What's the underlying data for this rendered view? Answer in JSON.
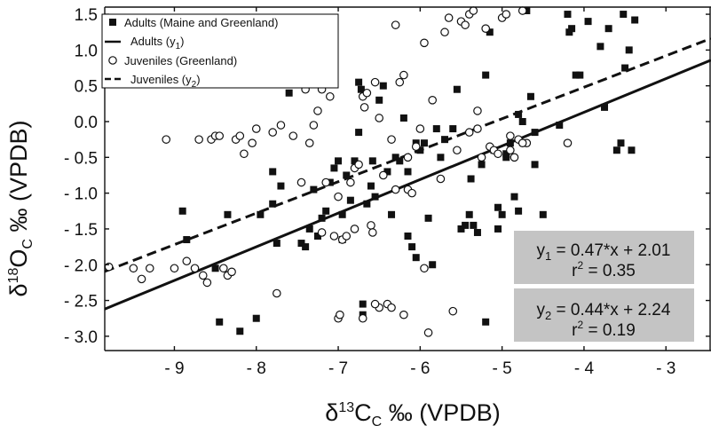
{
  "chart_data": {
    "type": "scatter",
    "xlabel": "δ13Cc ‰ (VPDB)",
    "ylabel": "δ18Oc ‰ (VPDB)",
    "xlim": [
      -9.85,
      -2.45
    ],
    "ylim": [
      -3.2,
      1.6
    ],
    "x_ticks": [
      -9,
      -8,
      -7,
      -6,
      -5,
      -4,
      -3
    ],
    "y_ticks": [
      1.5,
      1.0,
      0.5,
      0.0,
      -0.5,
      -1.0,
      -1.5,
      -2.0,
      -2.5,
      -3.0
    ],
    "x_tick_labels": [
      "- 9",
      "- 8",
      "- 7",
      "- 6",
      "- 5",
      "- 4",
      "- 3"
    ],
    "y_tick_labels": [
      "1.5",
      "1.0",
      "0.5",
      "0.0",
      "- 0.5",
      "- 1.0",
      "- 1.5",
      "- 2.0",
      "- 2.5",
      "- 3.0"
    ],
    "legend_position": "top-left",
    "legend": [
      {
        "label": "Adults (Maine and Greenland)",
        "marker": "square-filled"
      },
      {
        "label": "Adults (y1)",
        "marker": "solid-line"
      },
      {
        "label": "Juveniles (Greenland)",
        "marker": "circle-open"
      },
      {
        "label": "Juveniles (y2)",
        "marker": "dashed-line"
      }
    ],
    "annotations": [
      {
        "line1": "y1 = 0.47*x + 2.01",
        "line2": "r2 = 0.35"
      },
      {
        "line1": "y2 = 0.44*x + 2.24",
        "line2": "r2 = 0.19"
      }
    ],
    "series": [
      {
        "name": "Adults (Maine and Greenland)",
        "marker": "square-filled",
        "points": [
          [
            -8.9,
            -1.25
          ],
          [
            -8.85,
            -1.65
          ],
          [
            -8.5,
            -2.05
          ],
          [
            -8.45,
            -2.8
          ],
          [
            -8.35,
            -1.3
          ],
          [
            -8.2,
            -2.93
          ],
          [
            -8.0,
            -2.75
          ],
          [
            -7.95,
            -1.3
          ],
          [
            -7.8,
            -1.15
          ],
          [
            -7.75,
            -1.7
          ],
          [
            -7.7,
            -0.9
          ],
          [
            -7.6,
            0.4
          ],
          [
            -7.45,
            -1.7
          ],
          [
            -7.4,
            -1.75
          ],
          [
            -7.35,
            -1.5
          ],
          [
            -7.25,
            -1.6
          ],
          [
            -7.2,
            -1.35
          ],
          [
            -7.15,
            -1.25
          ],
          [
            -7.1,
            -0.85
          ],
          [
            -7.05,
            -0.65
          ],
          [
            -7.0,
            -0.55
          ],
          [
            -6.95,
            -1.65
          ],
          [
            -6.95,
            -1.3
          ],
          [
            -6.9,
            -0.75
          ],
          [
            -6.85,
            -1.1
          ],
          [
            -6.8,
            -0.55
          ],
          [
            -6.75,
            0.55
          ],
          [
            -6.72,
            0.45
          ],
          [
            -6.7,
            -2.55
          ],
          [
            -6.7,
            -2.7
          ],
          [
            -6.65,
            -1.15
          ],
          [
            -6.6,
            -0.9
          ],
          [
            -6.58,
            -0.55
          ],
          [
            -6.55,
            -1.05
          ],
          [
            -6.5,
            0.3
          ],
          [
            -6.45,
            0.5
          ],
          [
            -6.4,
            -0.7
          ],
          [
            -6.35,
            -1.3
          ],
          [
            -6.3,
            -0.5
          ],
          [
            -6.25,
            -0.55
          ],
          [
            -6.2,
            0.05
          ],
          [
            -6.15,
            -1.6
          ],
          [
            -6.1,
            -1.75
          ],
          [
            -6.05,
            -1.9
          ],
          [
            -6.0,
            -0.4
          ],
          [
            -5.95,
            -0.3
          ],
          [
            -5.9,
            -1.35
          ],
          [
            -5.85,
            -2.0
          ],
          [
            -5.8,
            -0.1
          ],
          [
            -5.75,
            -0.5
          ],
          [
            -5.7,
            -0.25
          ],
          [
            -5.55,
            0.45
          ],
          [
            -5.5,
            -1.5
          ],
          [
            -5.45,
            -1.45
          ],
          [
            -5.4,
            -1.3
          ],
          [
            -5.38,
            -0.8
          ],
          [
            -5.35,
            -1.45
          ],
          [
            -5.3,
            -1.55
          ],
          [
            -5.25,
            -0.6
          ],
          [
            -5.2,
            0.65
          ],
          [
            -5.15,
            1.25
          ],
          [
            -5.1,
            -0.4
          ],
          [
            -5.05,
            -1.2
          ],
          [
            -5.0,
            -1.3
          ],
          [
            -4.95,
            -0.5
          ],
          [
            -4.9,
            -0.3
          ],
          [
            -4.85,
            -1.05
          ],
          [
            -4.8,
            -1.25
          ],
          [
            -4.8,
            0.1
          ],
          [
            -4.75,
            0.0
          ],
          [
            -4.7,
            1.55
          ],
          [
            -4.65,
            0.35
          ],
          [
            -4.6,
            -0.15
          ],
          [
            -4.5,
            -1.3
          ],
          [
            -4.3,
            -0.05
          ],
          [
            -4.2,
            1.5
          ],
          [
            -4.18,
            1.25
          ],
          [
            -4.15,
            1.3
          ],
          [
            -4.1,
            0.65
          ],
          [
            -4.05,
            0.65
          ],
          [
            -3.95,
            1.4
          ],
          [
            -3.8,
            1.05
          ],
          [
            -3.75,
            0.2
          ],
          [
            -3.7,
            1.3
          ],
          [
            -3.6,
            -0.4
          ],
          [
            -3.55,
            -0.3
          ],
          [
            -3.52,
            1.5
          ],
          [
            -3.5,
            0.75
          ],
          [
            -3.45,
            1.0
          ],
          [
            -3.42,
            -0.4
          ],
          [
            -3.38,
            1.42
          ],
          [
            -6.15,
            -0.7
          ],
          [
            -7.3,
            -0.95
          ],
          [
            -5.2,
            -2.8
          ],
          [
            -6.75,
            -0.15
          ],
          [
            -7.8,
            -0.7
          ],
          [
            -4.95,
            -0.45
          ],
          [
            -5.05,
            -1.5
          ],
          [
            -5.6,
            -0.1
          ],
          [
            -6.05,
            -0.3
          ],
          [
            -4.6,
            -0.6
          ]
        ]
      },
      {
        "name": "Juveniles (Greenland)",
        "marker": "circle-open",
        "points": [
          [
            -9.8,
            -2.03
          ],
          [
            -9.5,
            -2.05
          ],
          [
            -9.4,
            -2.2
          ],
          [
            -9.3,
            -2.05
          ],
          [
            -9.1,
            -0.25
          ],
          [
            -9.0,
            -2.05
          ],
          [
            -8.85,
            -1.95
          ],
          [
            -8.75,
            -2.05
          ],
          [
            -8.7,
            -0.25
          ],
          [
            -8.65,
            -2.15
          ],
          [
            -8.6,
            -2.25
          ],
          [
            -8.55,
            -0.25
          ],
          [
            -8.5,
            -0.2
          ],
          [
            -8.45,
            -0.2
          ],
          [
            -8.4,
            -2.05
          ],
          [
            -8.35,
            -2.15
          ],
          [
            -8.3,
            -2.1
          ],
          [
            -8.25,
            -0.25
          ],
          [
            -8.2,
            -0.2
          ],
          [
            -8.15,
            -0.45
          ],
          [
            -8.05,
            -0.3
          ],
          [
            -8.0,
            -0.1
          ],
          [
            -7.8,
            -0.15
          ],
          [
            -7.75,
            -2.4
          ],
          [
            -7.7,
            -0.05
          ],
          [
            -7.55,
            -0.2
          ],
          [
            -7.45,
            -0.85
          ],
          [
            -7.4,
            0.45
          ],
          [
            -7.35,
            -0.3
          ],
          [
            -7.3,
            -0.05
          ],
          [
            -7.25,
            0.15
          ],
          [
            -7.2,
            0.45
          ],
          [
            -7.15,
            -0.85
          ],
          [
            -7.1,
            0.35
          ],
          [
            -7.05,
            -1.6
          ],
          [
            -7.0,
            -2.75
          ],
          [
            -6.98,
            -2.7
          ],
          [
            -6.95,
            -1.65
          ],
          [
            -6.9,
            -1.6
          ],
          [
            -6.85,
            -0.85
          ],
          [
            -6.8,
            -0.65
          ],
          [
            -6.75,
            -0.6
          ],
          [
            -6.7,
            0.35
          ],
          [
            -6.68,
            0.2
          ],
          [
            -6.65,
            0.4
          ],
          [
            -6.6,
            -1.45
          ],
          [
            -6.58,
            -1.55
          ],
          [
            -6.55,
            0.55
          ],
          [
            -6.5,
            0.05
          ],
          [
            -6.45,
            -0.75
          ],
          [
            -6.4,
            -2.55
          ],
          [
            -6.35,
            -2.6
          ],
          [
            -6.3,
            1.35
          ],
          [
            -6.25,
            0.55
          ],
          [
            -6.2,
            0.65
          ],
          [
            -6.15,
            -0.95
          ],
          [
            -6.1,
            -1.0
          ],
          [
            -6.05,
            -0.35
          ],
          [
            -6.0,
            -0.1
          ],
          [
            -5.95,
            1.1
          ],
          [
            -5.9,
            -2.95
          ],
          [
            -5.85,
            0.3
          ],
          [
            -5.75,
            -0.8
          ],
          [
            -5.7,
            1.25
          ],
          [
            -5.65,
            1.45
          ],
          [
            -5.6,
            -2.65
          ],
          [
            -5.55,
            -0.4
          ],
          [
            -5.5,
            1.4
          ],
          [
            -5.45,
            1.35
          ],
          [
            -5.4,
            1.5
          ],
          [
            -5.35,
            1.55
          ],
          [
            -5.3,
            0.15
          ],
          [
            -5.25,
            -0.5
          ],
          [
            -5.2,
            1.3
          ],
          [
            -5.15,
            -0.35
          ],
          [
            -5.1,
            -0.4
          ],
          [
            -5.05,
            -0.45
          ],
          [
            -5.0,
            1.45
          ],
          [
            -4.95,
            1.5
          ],
          [
            -4.9,
            -0.2
          ],
          [
            -4.85,
            -0.5
          ],
          [
            -4.8,
            -0.25
          ],
          [
            -4.75,
            1.55
          ],
          [
            -4.7,
            -0.3
          ],
          [
            -4.2,
            -0.3
          ],
          [
            -6.5,
            -2.6
          ],
          [
            -6.2,
            -2.7
          ],
          [
            -6.8,
            -1.5
          ],
          [
            -7.0,
            -1.05
          ],
          [
            -6.3,
            -0.95
          ],
          [
            -5.95,
            -2.05
          ],
          [
            -6.7,
            -2.75
          ],
          [
            -7.2,
            -1.55
          ],
          [
            -5.4,
            -0.15
          ],
          [
            -5.3,
            -0.1
          ],
          [
            -4.9,
            -0.4
          ],
          [
            -6.55,
            -2.55
          ],
          [
            -6.15,
            -0.5
          ],
          [
            -6.35,
            -0.25
          ],
          [
            -4.75,
            -0.3
          ]
        ]
      }
    ],
    "fits": [
      {
        "name": "Adults (y1)",
        "slope": 0.47,
        "intercept": 2.01,
        "style": "solid"
      },
      {
        "name": "Juveniles (y2)",
        "slope": 0.44,
        "intercept": 2.24,
        "style": "dashed"
      }
    ]
  }
}
